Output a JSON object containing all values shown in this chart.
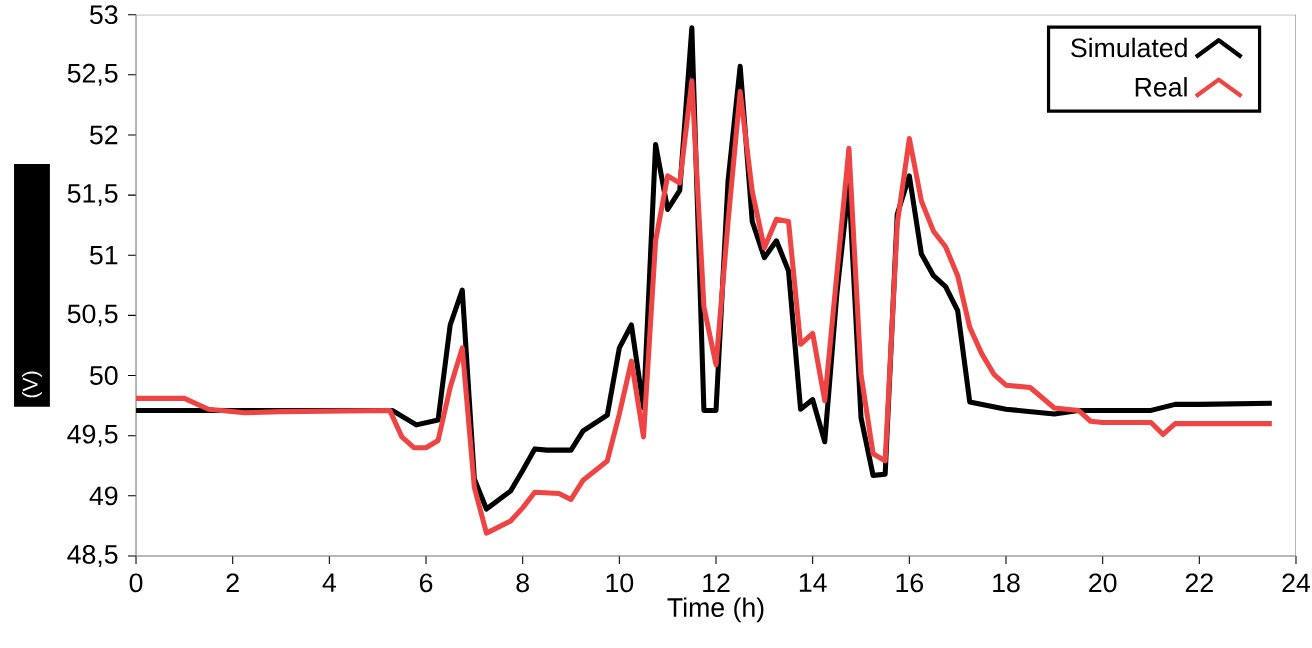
{
  "chart_data": {
    "type": "line",
    "xlabel": "Time (h)",
    "ylabel": "(V)",
    "xlim": [
      0,
      24
    ],
    "ylim": [
      48.5,
      53
    ],
    "xticks": [
      0,
      2,
      4,
      6,
      8,
      10,
      12,
      14,
      16,
      18,
      20,
      22,
      24
    ],
    "yticks": [
      {
        "value": 48.5,
        "label": "48,5"
      },
      {
        "value": 49,
        "label": "49"
      },
      {
        "value": 49.5,
        "label": "49,5"
      },
      {
        "value": 50,
        "label": "50"
      },
      {
        "value": 50.5,
        "label": "50,5"
      },
      {
        "value": 51,
        "label": "51"
      },
      {
        "value": 51.5,
        "label": "51,5"
      },
      {
        "value": 52,
        "label": "52"
      },
      {
        "value": 52.5,
        "label": "52,5"
      },
      {
        "value": 53,
        "label": "53"
      }
    ],
    "legend": "top right",
    "grid": false,
    "line_style": "solid",
    "series": [
      {
        "name": "Simulated",
        "color": "#000000",
        "x": [
          0,
          5.3,
          5.8,
          6.25,
          6.5,
          6.75,
          7,
          7.25,
          7.75,
          8,
          8.25,
          8.5,
          9,
          9.25,
          9.75,
          10,
          10.25,
          10.5,
          10.75,
          11,
          11.25,
          11.5,
          11.75,
          12,
          12.25,
          12.5,
          12.75,
          13,
          13.25,
          13.5,
          13.75,
          14,
          14.25,
          14.5,
          14.75,
          15,
          15.25,
          15.5,
          15.75,
          16,
          16.25,
          16.5,
          16.75,
          17,
          17.25,
          18,
          19,
          19.5,
          21,
          21.5,
          22,
          23.5
        ],
        "values": [
          49.71,
          49.71,
          49.59,
          49.63,
          50.42,
          50.71,
          49.14,
          48.89,
          49.04,
          49.21,
          49.39,
          49.38,
          49.38,
          49.54,
          49.67,
          50.23,
          50.42,
          49.73,
          51.92,
          51.38,
          51.54,
          52.89,
          49.71,
          49.71,
          51.62,
          52.57,
          51.28,
          50.98,
          51.12,
          50.87,
          49.72,
          49.8,
          49.45,
          50.68,
          51.59,
          49.65,
          49.17,
          49.18,
          51.34,
          51.66,
          51.01,
          50.83,
          50.74,
          50.54,
          49.78,
          49.72,
          49.68,
          49.71,
          49.71,
          49.76,
          49.76,
          49.77
        ]
      },
      {
        "name": "Real",
        "color": "#ee4444",
        "x": [
          0,
          1,
          1.5,
          2.25,
          3,
          5.25,
          5.5,
          5.75,
          6,
          6.25,
          6.5,
          6.75,
          7,
          7.25,
          7.75,
          8,
          8.25,
          8.75,
          9,
          9.25,
          9.75,
          10,
          10.25,
          10.5,
          10.75,
          11,
          11.25,
          11.5,
          11.75,
          12,
          12.25,
          12.5,
          12.75,
          13,
          13.25,
          13.5,
          13.75,
          14,
          14.25,
          14.75,
          15,
          15.25,
          15.5,
          15.75,
          16,
          16.25,
          16.5,
          16.75,
          17,
          17.25,
          17.5,
          17.75,
          18,
          18.5,
          19,
          19.5,
          19.75,
          20,
          21,
          21.25,
          21.5,
          23.5
        ],
        "values": [
          49.81,
          49.81,
          49.72,
          49.69,
          49.7,
          49.71,
          49.49,
          49.4,
          49.4,
          49.46,
          49.9,
          50.23,
          49.07,
          48.69,
          48.79,
          48.9,
          49.03,
          49.02,
          48.97,
          49.13,
          49.29,
          49.68,
          50.12,
          49.49,
          51.12,
          51.66,
          51.6,
          52.45,
          50.57,
          50.09,
          51.28,
          52.36,
          51.53,
          51.06,
          51.3,
          51.28,
          50.26,
          50.35,
          49.79,
          51.89,
          50.01,
          49.35,
          49.29,
          51.26,
          51.97,
          51.45,
          51.2,
          51.07,
          50.83,
          50.4,
          50.18,
          50.01,
          49.92,
          49.9,
          49.73,
          49.71,
          49.62,
          49.61,
          49.61,
          49.51,
          49.6,
          49.6
        ]
      }
    ]
  }
}
